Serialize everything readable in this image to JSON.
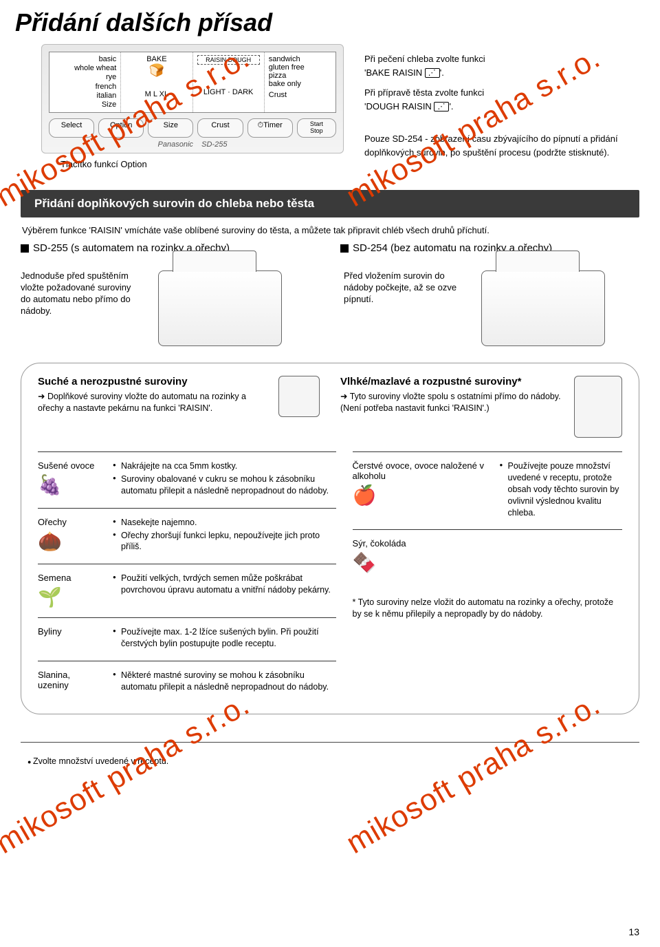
{
  "page": {
    "title": "Přidání dalších přísad",
    "number": "13",
    "footer_note": "Zvolte množství uvedené v receptu."
  },
  "watermarks": [
    "mikosoft praha s.r.o.",
    "mikosoft praha s.r.o.",
    "mikosoft praha s.r.o.",
    "mikosoft praha s.r.o."
  ],
  "panel": {
    "col1_lines": [
      "basic",
      "whole wheat",
      "rye",
      "french",
      "italian"
    ],
    "col1_bottom": "Size",
    "col2_top": "BAKE",
    "col2_bottom": "M  L  XL",
    "col3_top": "RAISIN DOUGH",
    "col3_bottom": "LIGHT · DARK",
    "col4_lines": [
      "sandwich",
      "gluten free",
      "pizza",
      "bake only"
    ],
    "col4_bottom": "Crust",
    "buttons": [
      "Select",
      "Option",
      "Size",
      "Crust",
      "⏱Timer"
    ],
    "startstop_top": "Start",
    "startstop_bot": "Stop",
    "brand": "Panasonic",
    "model": "SD-255",
    "option_caption": "Tlačítko funkcí Option"
  },
  "right_notes": {
    "line1": "Při pečení chleba zvolte funkci",
    "line1b": "'BAKE RAISIN",
    "line2": "Při přípravě těsta zvolte funkci",
    "line2b": "'DOUGH RAISIN",
    "line3": "Pouze SD-254 - zobrazení času zbývajícího do pípnutí a přidání doplňkových surovin, po spuštění procesu (podržte stisknuté)."
  },
  "dark_bar": "Přidání doplňkových surovin do chleba nebo těsta",
  "intro_text": "Výběrem funkce 'RAISIN' vmícháte vaše oblíbené suroviny do těsta, a můžete tak připravit chléb všech druhů příchutí.",
  "models": {
    "left": "SD-255 (s automatem na rozinky a ořechy)",
    "right": "SD-254 (bez automatu na rozinky a ořechy)"
  },
  "machine_captions": {
    "left": "Jednoduše před spuštěním vložte požadované suroviny do automatu nebo přímo do nádoby.",
    "right": "Před vložením surovin do nádoby počkejte, až se ozve pípnutí."
  },
  "ingredients": {
    "dry_title": "Suché a nerozpustné suroviny",
    "dry_sub": "➜ Doplňkové suroviny vložte do automatu na rozinky a ořechy a nastavte pekárnu na funkci 'RAISIN'.",
    "wet_title": "Vlhké/mazlavé a rozpustné suroviny*",
    "wet_sub1": "➜ Tyto suroviny vložte spolu s ostatními přímo do nádoby.",
    "wet_sub2": "(Není potřeba nastavit funkci 'RAISIN'.)"
  },
  "left_rows": [
    {
      "name": "Sušené ovoce",
      "notes": [
        "Nakrájejte na cca 5mm kostky.",
        "Suroviny obalované v cukru se mohou k zásobníku automatu přilepit a následně nepropadnout do nádoby."
      ],
      "glyph": "🍇"
    },
    {
      "name": "Ořechy",
      "notes": [
        "Nasekejte najemno.",
        "Ořechy zhoršují funkci lepku, nepoužívejte jich proto příliš."
      ],
      "glyph": "🌰"
    },
    {
      "name": "Semena",
      "notes": [
        "Použití velkých, tvrdých semen může poškrábat povrchovou úpravu automatu a vnitřní nádoby pekárny."
      ],
      "glyph": "🌱"
    },
    {
      "name": "Byliny",
      "notes": [
        "Používejte max. 1-2 lžíce sušených bylin. Při použití čerstvých bylin postupujte podle receptu."
      ],
      "glyph": ""
    },
    {
      "name": "Slanina, uzeniny",
      "notes": [
        "Některé mastné suroviny se mohou k zásobníku automatu přilepit a následně nepropadnout do nádoby."
      ],
      "glyph": ""
    }
  ],
  "right_rows": [
    {
      "name": "Čerstvé ovoce, ovoce naložené v alkoholu",
      "notes": [
        "Používejte pouze množství uvedené v receptu, protože obsah vody těchto surovin by ovlivnil výslednou kvalitu chleba."
      ],
      "glyph": "🍎"
    },
    {
      "name": "Sýr, čokoláda",
      "notes": [],
      "glyph": "🍫"
    }
  ],
  "right_star_note": "* Tyto suroviny nelze vložit do automatu na rozinky a ořechy, protože by se k němu přilepily a nepropadly by do nádoby.",
  "colors": {
    "watermark": "#dd3b00",
    "darkbar_bg": "#3a3a3a"
  }
}
